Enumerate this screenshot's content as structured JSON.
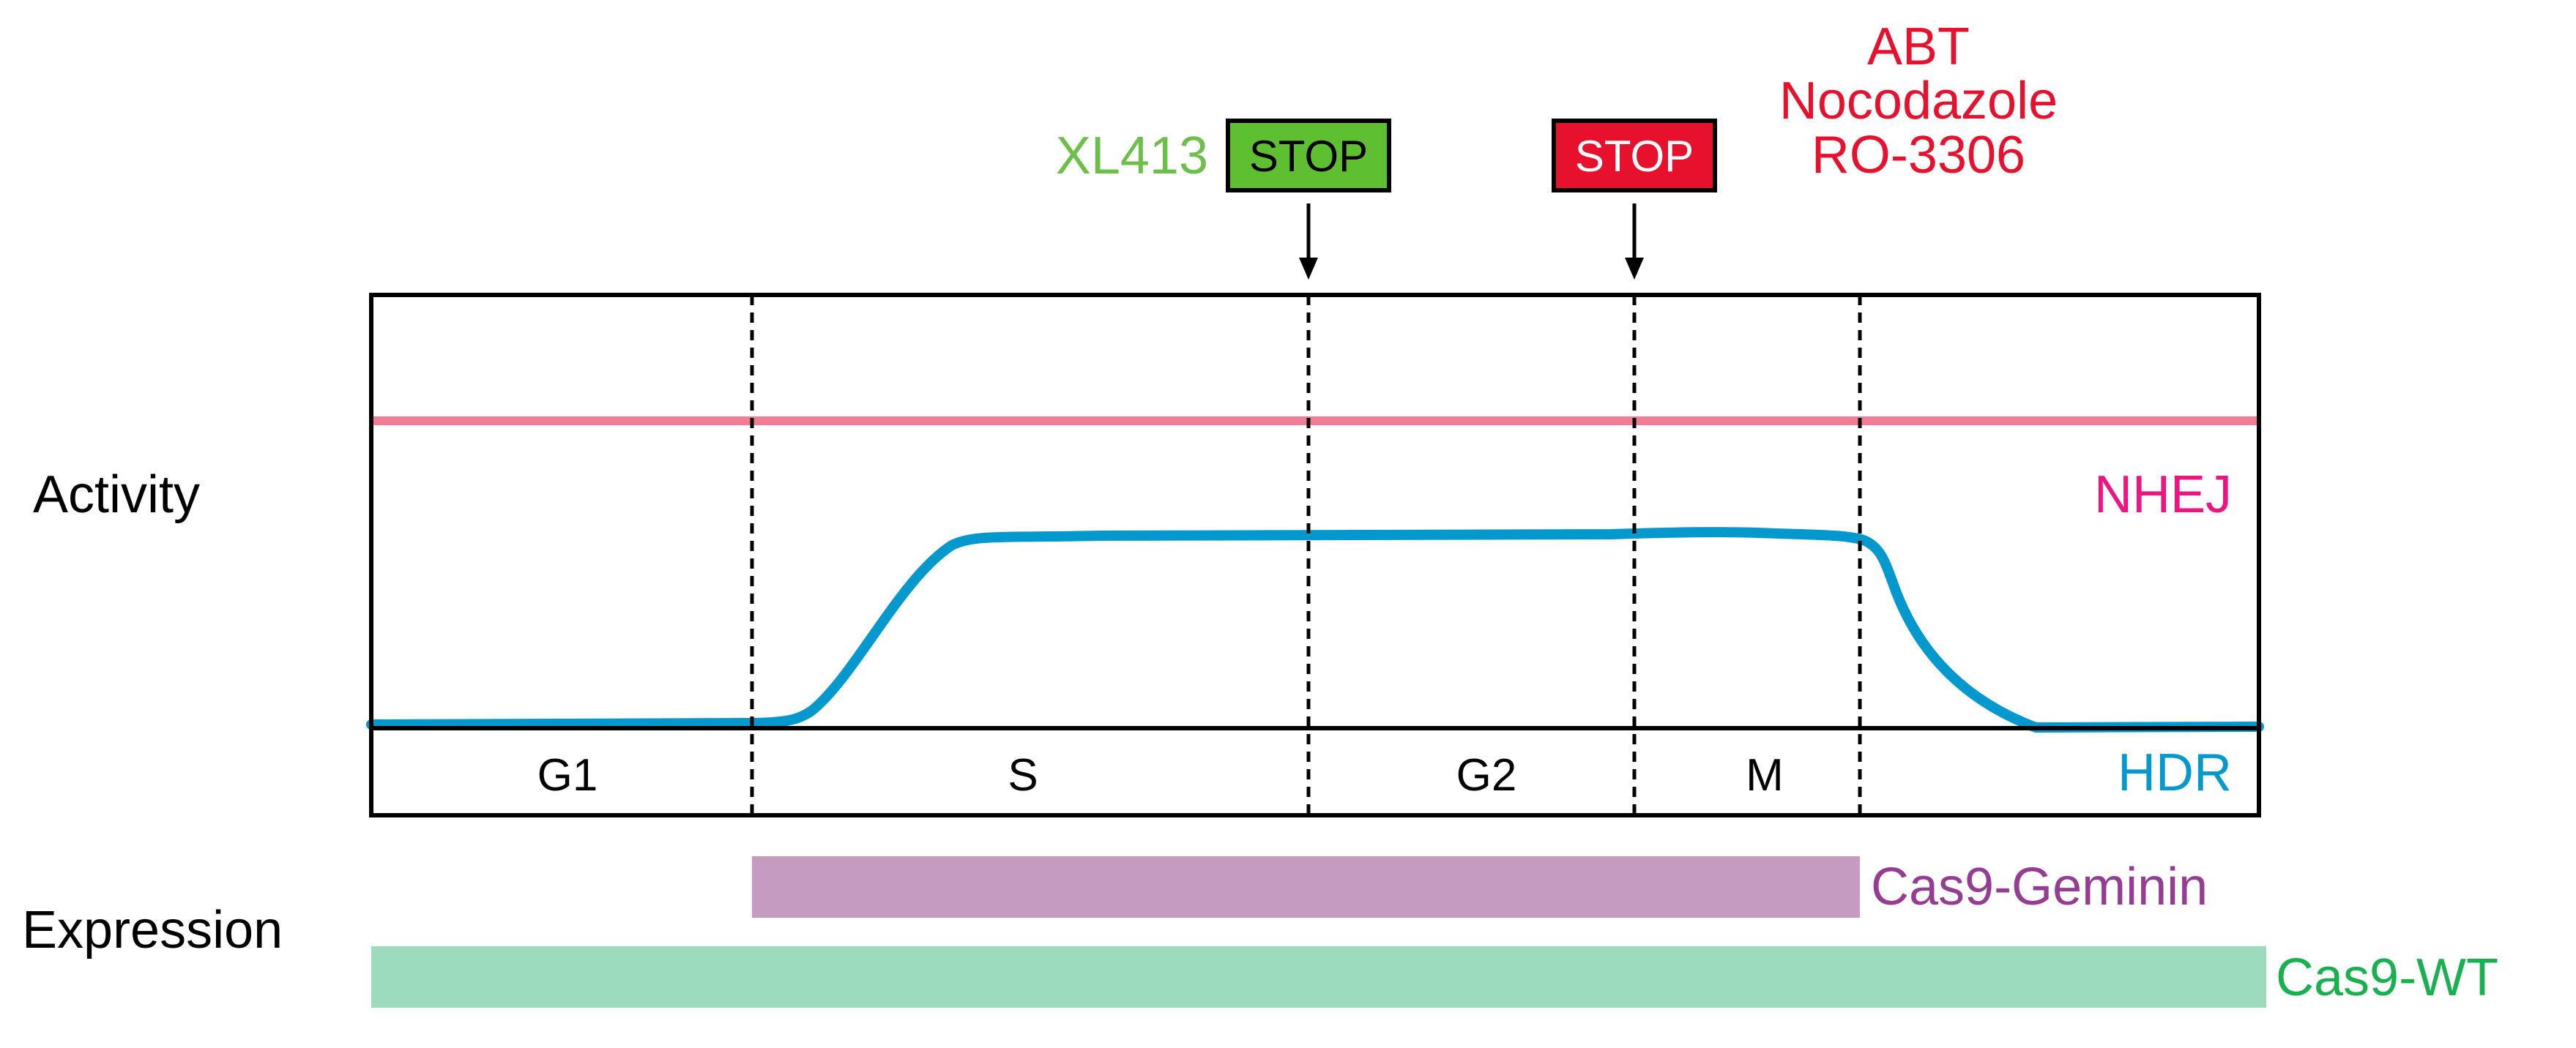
{
  "colors": {
    "axis": "#000000",
    "nhej": "#f27c92",
    "hdr": "#0399ce",
    "geminin_bar": "#c59bc1",
    "wt_bar": "#9cdbbb",
    "green_text": "#6cc04a",
    "red_text": "#e8112d",
    "stop_green_fill": "#5ec030",
    "stop_red_fill": "#e8112d",
    "nhej_label": "#ec1682",
    "geminin_label": "#953c93",
    "wt_label": "#19b14f"
  },
  "labels": {
    "activity": "Activity",
    "expression": "Expression",
    "nhej": "NHEJ",
    "hdr": "HDR",
    "cas9_geminin": "Cas9-Geminin",
    "cas9_wt": "Cas9-WT"
  },
  "phases": [
    "G1",
    "S",
    "G2",
    "M"
  ],
  "inhibitors": {
    "g2_block": {
      "drug": "XL413",
      "marker": "STOP",
      "position": "S/G2 boundary"
    },
    "m_block": {
      "drugs": [
        "ABT",
        "Nocodazole",
        "RO-3306"
      ],
      "marker": "STOP",
      "position": "G2/M boundary"
    }
  },
  "activity_levels": {
    "nhej": "constant high throughout cell cycle",
    "hdr": {
      "G1": "low",
      "S": "rising to high",
      "G2": "high",
      "M": "high, falling at M exit"
    }
  },
  "expression": {
    "cas9_geminin": {
      "start": "S",
      "end": "M"
    },
    "cas9_wt": {
      "start": "G1",
      "end": "M"
    }
  }
}
